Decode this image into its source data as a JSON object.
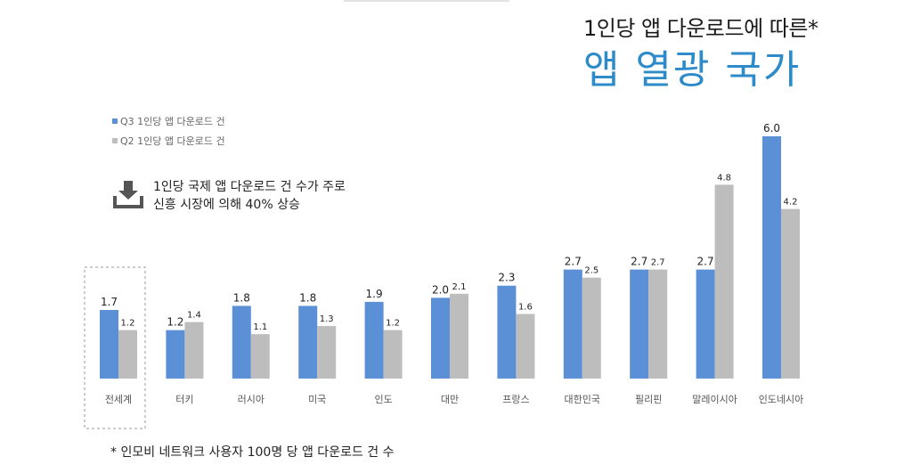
{
  "title": {
    "line1": "1인당 앱 다운로드에 따른*",
    "line2": "앱 열광 국가"
  },
  "colors": {
    "q3": "#5b8fd6",
    "q2": "#bdbdbd",
    "title_accent": "#2e8bc9",
    "highlight_border": "#9a9a9a"
  },
  "legend": {
    "items": [
      {
        "label": "Q3 1인당 앱 다운로드 건",
        "color": "#5b8fd6"
      },
      {
        "label": "Q2 1인당 앱 다운로드 건",
        "color": "#bdbdbd"
      }
    ]
  },
  "annotation": {
    "icon": "download-icon",
    "line1": "1인당 국제 앱 다운로드 건 수가 주로",
    "line2": "신흥 시장에 의해 40% 상승"
  },
  "footnote": "* 인모비 네트워크 사용자 100명 당 앱 다운로드 건 수",
  "chart_data": {
    "type": "bar",
    "categories": [
      "전세계",
      "터키",
      "러시아",
      "미국",
      "인도",
      "대만",
      "프랑스",
      "대한민국",
      "필리핀",
      "말레이시아",
      "인도네시아"
    ],
    "series": [
      {
        "name": "Q3 1인당 앱 다운로드 건",
        "values": [
          1.7,
          1.2,
          1.8,
          1.8,
          1.9,
          2.0,
          2.3,
          2.7,
          2.7,
          2.7,
          6.0
        ]
      },
      {
        "name": "Q2 1인당 앱 다운로드 건",
        "values": [
          1.2,
          1.4,
          1.1,
          1.3,
          1.2,
          2.1,
          1.6,
          2.5,
          2.7,
          4.8,
          4.2
        ]
      }
    ],
    "value_labels": [
      [
        "1.7",
        "1.2",
        "1.8",
        "1.8",
        "1.9",
        "2.0",
        "2.3",
        "2.7",
        "2.7",
        "2.7",
        "6.0"
      ],
      [
        "1.2",
        "1.4",
        "1.1",
        "1.3",
        "1.2",
        "2.1",
        "1.6",
        "2.5",
        "2.7",
        "4.8",
        "4.2"
      ]
    ],
    "ylim": [
      0,
      6.0
    ],
    "highlighted_category": "전세계",
    "xlabel": "",
    "ylabel": "",
    "grid": false
  }
}
